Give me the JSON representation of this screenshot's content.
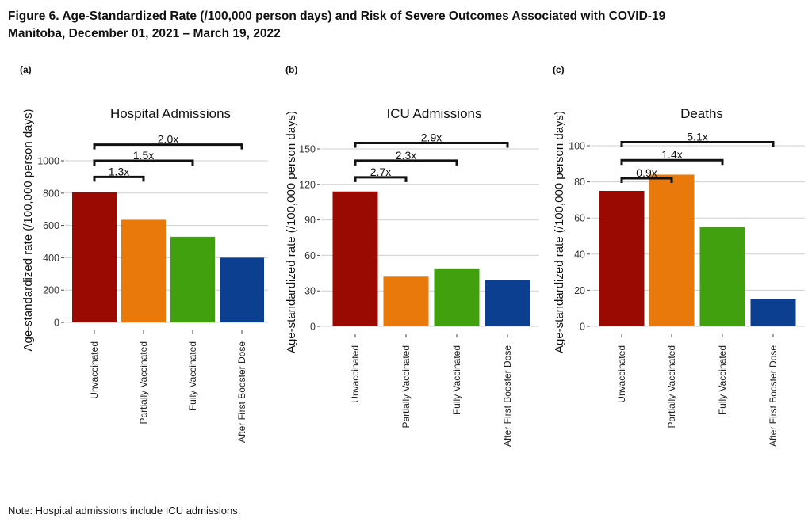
{
  "figure": {
    "title_line1": "Figure 6. Age-Standardized Rate (/100,000 person days) and Risk of Severe Outcomes Associated with COVID-19",
    "title_line2": "Manitoba, December 01, 2021 – March 19, 2022",
    "note": "Note: Hospital admissions include ICU admissions."
  },
  "colors": [
    "#9a0a02",
    "#e8790a",
    "#41a00e",
    "#0d3f91"
  ],
  "chart_data": [
    {
      "type": "bar",
      "panel": "(a)",
      "title": "Hospital Admissions",
      "ylabel": "Age-standardized rate (/100,000 person days)",
      "xlabel": "",
      "categories": [
        "Unvaccinated",
        "Partially Vaccinated",
        "Fully Vaccinated",
        "After First Booster Dose"
      ],
      "values": [
        805,
        635,
        530,
        400
      ],
      "yticks": [
        0,
        200,
        400,
        600,
        800,
        1000
      ],
      "ylim": [
        0,
        1150
      ],
      "grid": true,
      "comparisons": [
        {
          "label": "1.3x",
          "from": 0,
          "to": 1,
          "level": 900
        },
        {
          "label": "1.5x",
          "from": 0,
          "to": 2,
          "level": 1000
        },
        {
          "label": "2.0x",
          "from": 0,
          "to": 3,
          "level": 1100
        }
      ]
    },
    {
      "type": "bar",
      "panel": "(b)",
      "title": "ICU Admissions",
      "ylabel": "Age-standardized rate (/100,000 person days)",
      "xlabel": "",
      "categories": [
        "Unvaccinated",
        "Partially Vaccinated",
        "Fully Vaccinated",
        "After First Booster Dose"
      ],
      "values": [
        114,
        42,
        49,
        39
      ],
      "yticks": [
        0,
        30,
        60,
        90,
        120,
        150
      ],
      "ylim": [
        0,
        165
      ],
      "grid": true,
      "comparisons": [
        {
          "label": "2.7x",
          "from": 0,
          "to": 1,
          "level": 126
        },
        {
          "label": "2.3x",
          "from": 0,
          "to": 2,
          "level": 140
        },
        {
          "label": "2.9x",
          "from": 0,
          "to": 3,
          "level": 155
        }
      ]
    },
    {
      "type": "bar",
      "panel": "(c)",
      "title": "Deaths",
      "ylabel": "Age-standardized rate (/100,000 person days)",
      "xlabel": "",
      "categories": [
        "Unvaccinated",
        "Partially Vaccinated",
        "Fully Vaccinated",
        "After First Booster Dose"
      ],
      "values": [
        75,
        84,
        55,
        15
      ],
      "yticks": [
        0,
        20,
        40,
        60,
        80,
        100
      ],
      "ylim": [
        0,
        110
      ],
      "grid": true,
      "comparisons": [
        {
          "label": "0.9x",
          "from": 0,
          "to": 1,
          "level": 82
        },
        {
          "label": "1.4x",
          "from": 0,
          "to": 2,
          "level": 92
        },
        {
          "label": "5.1x",
          "from": 0,
          "to": 3,
          "level": 102
        }
      ]
    }
  ]
}
